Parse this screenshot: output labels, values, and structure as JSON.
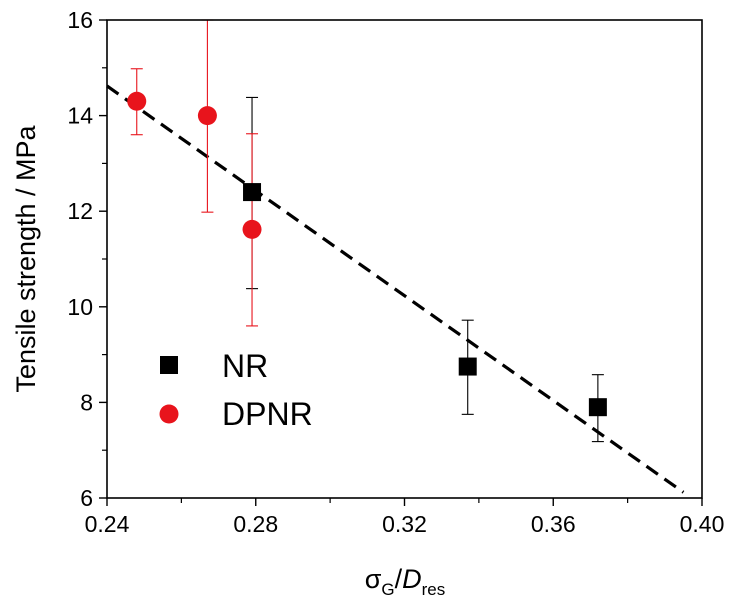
{
  "chart_data": {
    "type": "scatter",
    "xlabel": {
      "main": "σ",
      "sub": "G",
      "sep": "/",
      "main2": "D",
      "sub2": "res"
    },
    "ylabel": "Tensile strength /  MPa",
    "xlim": [
      0.24,
      0.4
    ],
    "ylim": [
      6,
      16
    ],
    "x_ticks": [
      0.24,
      0.28,
      0.32,
      0.36,
      0.4
    ],
    "x_tick_labels": [
      "0.24",
      "0.28",
      "0.32",
      "0.36",
      "0.40"
    ],
    "y_ticks": [
      6,
      8,
      10,
      12,
      14,
      16
    ],
    "y_tick_labels": [
      "6",
      "8",
      "10",
      "12",
      "14",
      "16"
    ],
    "grid": false,
    "legend_position": "lower-left",
    "series": [
      {
        "name": "NR",
        "marker": "square",
        "color": "#000000",
        "points": [
          {
            "x": 0.279,
            "y": 12.4,
            "err_low": 10.38,
            "err_high": 14.38
          },
          {
            "x": 0.337,
            "y": 8.75,
            "err_low": 7.75,
            "err_high": 9.72
          },
          {
            "x": 0.372,
            "y": 7.9,
            "err_low": 7.18,
            "err_high": 8.58
          }
        ]
      },
      {
        "name": "DPNR",
        "marker": "circle",
        "color": "#e8141c",
        "points": [
          {
            "x": 0.248,
            "y": 14.3,
            "err_low": 13.6,
            "err_high": 14.98
          },
          {
            "x": 0.267,
            "y": 14.0,
            "err_low": 11.98,
            "err_high": 16.0
          },
          {
            "x": 0.279,
            "y": 11.62,
            "err_low": 9.6,
            "err_high": 13.62
          }
        ]
      }
    ],
    "trendline": {
      "style": "dashed",
      "color": "#000000",
      "x": [
        0.24,
        0.395
      ],
      "y": [
        14.62,
        6.12
      ]
    }
  }
}
